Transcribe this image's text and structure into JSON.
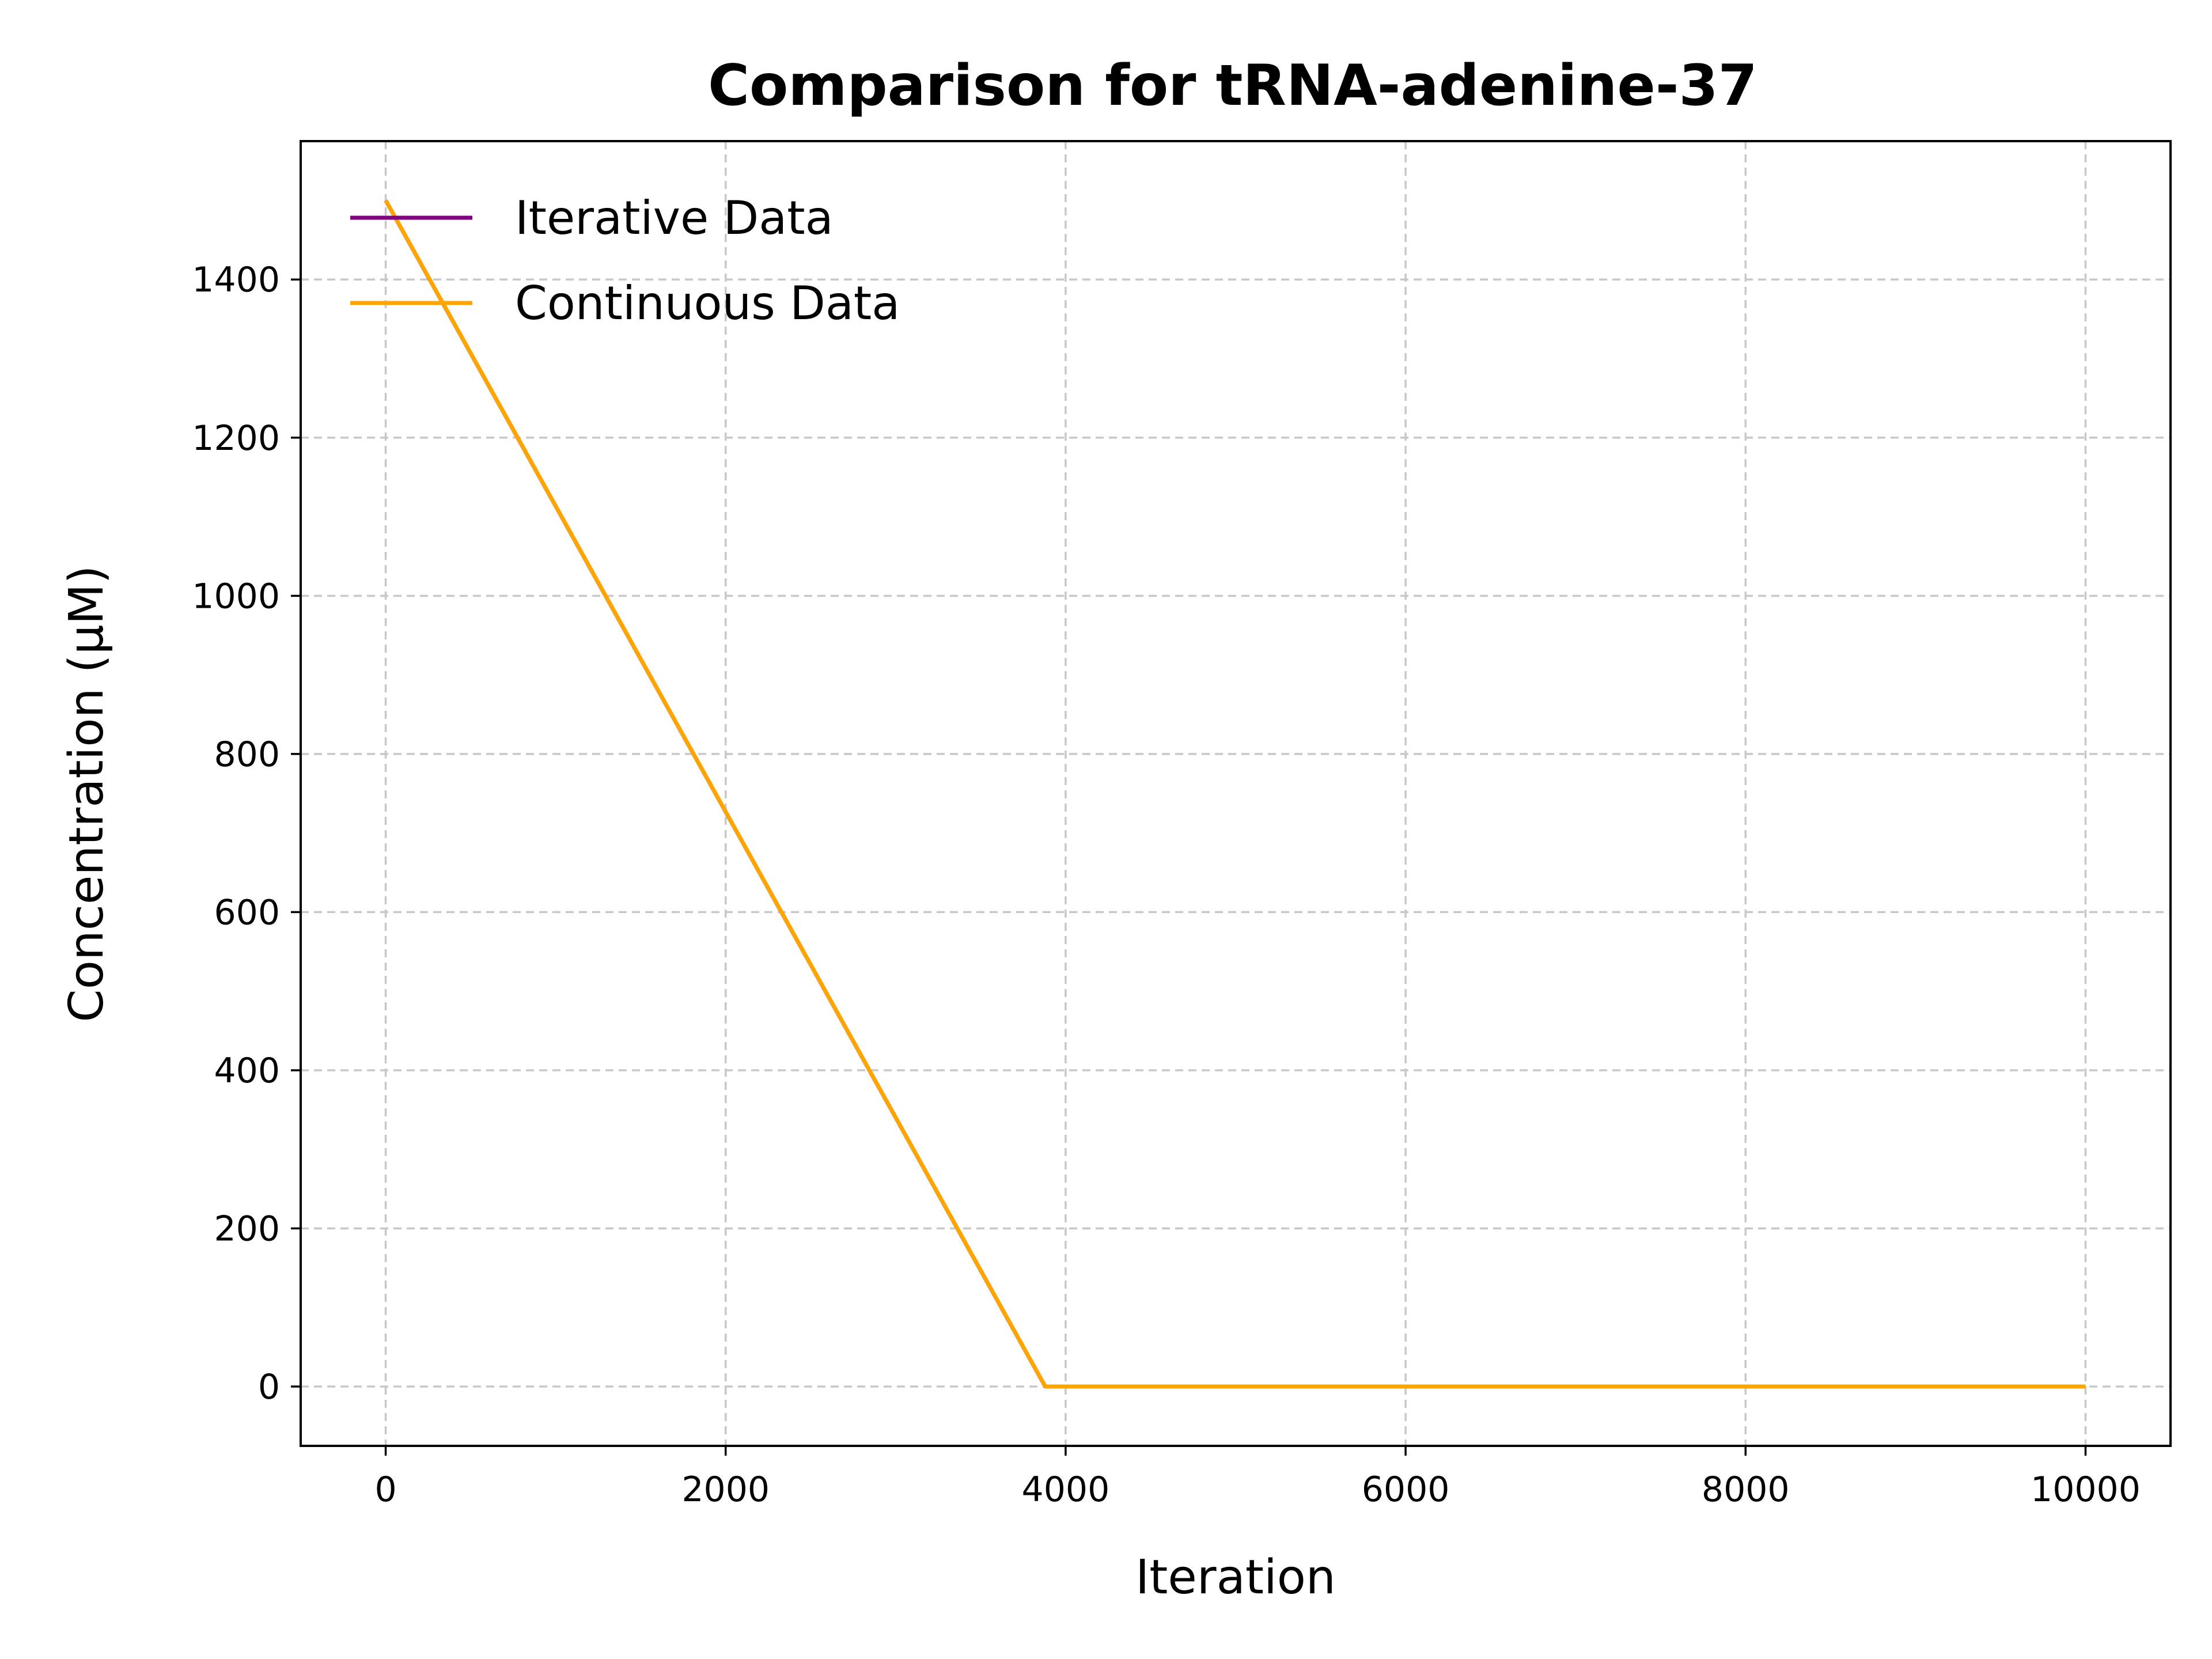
{
  "chart_data": {
    "type": "line",
    "title": "Comparison for tRNA-adenine-37",
    "xlabel": "Iteration",
    "ylabel": "Concentration (μM)",
    "xlim": [
      -500,
      10500
    ],
    "ylim": [
      -75,
      1575
    ],
    "xticks": [
      0,
      2000,
      4000,
      6000,
      8000,
      10000
    ],
    "yticks": [
      0,
      200,
      400,
      600,
      800,
      1000,
      1200,
      1400
    ],
    "grid": true,
    "legend_position": "top-left",
    "series": [
      {
        "name": "Iterative Data",
        "color": "#800080",
        "x": [
          0,
          3880,
          10000
        ],
        "y": [
          1500,
          0,
          0
        ]
      },
      {
        "name": "Continuous Data",
        "color": "#FFA500",
        "x": [
          0,
          3880,
          10000
        ],
        "y": [
          1500,
          0,
          0
        ]
      }
    ]
  }
}
